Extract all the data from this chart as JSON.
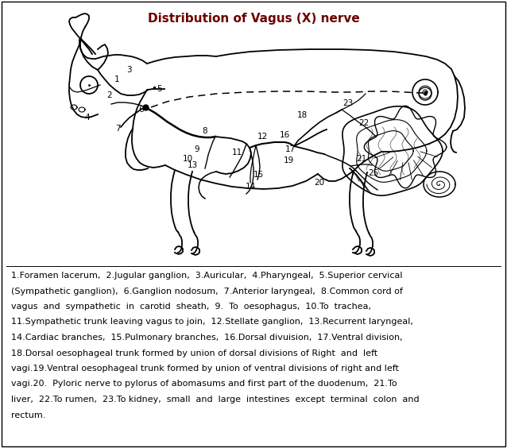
{
  "title": "Distribution of Vagus (X) nerve",
  "title_color": "#6B0000",
  "title_fontsize": 11,
  "bg_color": "#FFFFFF",
  "fig_width": 6.38,
  "fig_height": 5.64,
  "caption_lines": [
    "1.Foramen lacerum,  2.Jugular ganglion,  3.Auricular,  4.Pharyngeal,  5.Superior cervical",
    "(Sympathetic ganglion),  6.Ganglion nodosum,  7.Anterior laryngeal,  8.Common cord of",
    "vagus  and  sympathetic  in  carotid  sheath,  9.  To  oesophagus,  10.To  trachea,",
    "11.Sympathetic trunk leaving vagus to join,  12.Stellate ganglion,  13.Recurrent laryngeal,",
    "14.Cardiac branches,  15.Pulmonary branches,  16.Dorsal divuision,  17.Ventral division,",
    "18.Dorsal oesophageal trunk formed by union of dorsal divisions of Right  and  left",
    "vagi.19.Ventral oesophageal trunk formed by union of ventral divisions of right and left",
    "vagi.20.  Pyloric nerve to pylorus of abomasums and first part of the duodenum,  21.To",
    "liver,  22.To rumen,  23.To kidney,  small  and  large  intestines  except  terminal  colon  and",
    "rectum."
  ],
  "caption_fontsize": 8.0
}
